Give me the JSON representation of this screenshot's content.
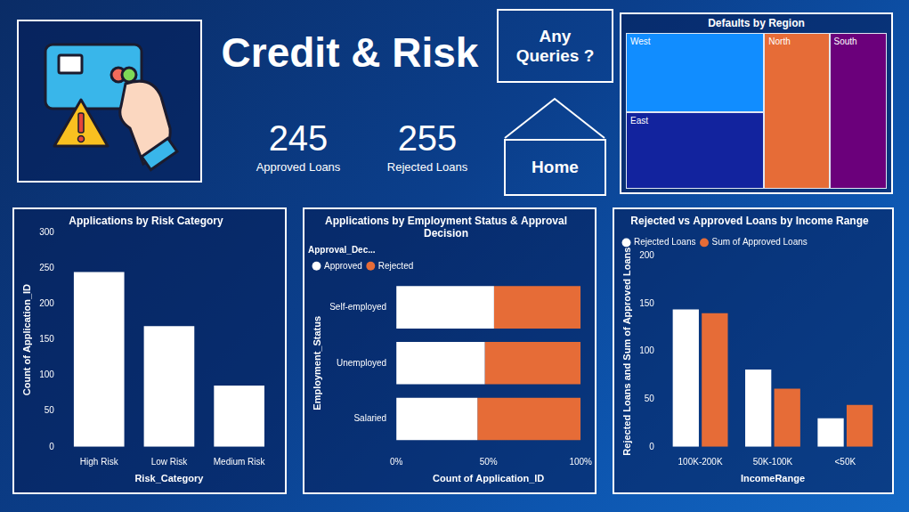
{
  "header": {
    "title": "Credit & Risk"
  },
  "kpis": [
    {
      "value": 245,
      "label": "Approved Loans"
    },
    {
      "value": 255,
      "label": "Rejected Loans"
    }
  ],
  "buttons": [
    "Any Queries ?",
    "Home"
  ],
  "chart_data": [
    {
      "type": "treemap",
      "title": "Defaults by Region",
      "categories": [
        "West",
        "East",
        "North",
        "South"
      ],
      "values": [
        27,
        26,
        25,
        22
      ],
      "colors": [
        "#118DFF",
        "#12239E",
        "#E66C37",
        "#6B007B"
      ]
    },
    {
      "type": "bar",
      "title": "Applications by Risk Category",
      "categories": [
        "High Risk",
        "Low Risk",
        "Medium Risk"
      ],
      "values": [
        245,
        169,
        86
      ],
      "color": "#FFFFFF",
      "x_label": "Risk_Category",
      "y_label": "Count of Application_ID",
      "ylim": [
        0,
        300
      ],
      "yticks": [
        0,
        50,
        100,
        150,
        200,
        250,
        300
      ],
      "grid": false
    },
    {
      "type": "bar",
      "title": "Applications by Employment Status & Approval Decision",
      "orientation": "horizontal",
      "stacked": true,
      "legend": "top-left",
      "legend_title": "Approval_Dec...",
      "categories": [
        "Self-employed",
        "Unemployed",
        "Salaried"
      ],
      "series": [
        {
          "name": "Approved",
          "color": "#FFFFFF",
          "values": [
            53,
            48,
            44
          ]
        },
        {
          "name": "Rejected",
          "color": "#E66C37",
          "values": [
            47,
            52,
            56
          ]
        }
      ],
      "xlim": [
        0,
        100
      ],
      "xticks": [
        {
          "value": 0,
          "label": "0%"
        },
        {
          "value": 50,
          "label": "50%"
        },
        {
          "value": 100,
          "label": "100%"
        }
      ],
      "x_label": "Count of Application_ID",
      "y_label": "Employment_Status",
      "grid": false
    },
    {
      "type": "bar",
      "title": "Rejected vs Approved Loans by Income Range",
      "legend": "top-left",
      "categories": [
        "100K-200K",
        "50K-100K",
        "<50K"
      ],
      "series": [
        {
          "name": "Rejected Loans",
          "color": "#FFFFFF",
          "values": [
            144,
            81,
            30
          ]
        },
        {
          "name": "Sum of Approved Loans",
          "color": "#E66C37",
          "values": [
            140,
            61,
            44
          ]
        }
      ],
      "ylim": [
        0,
        200
      ],
      "yticks": [
        0,
        50,
        100,
        150,
        200
      ],
      "x_label": "IncomeRange",
      "y_label": "Rejected Loans and Sum of Approved Loans",
      "grid": false
    }
  ]
}
